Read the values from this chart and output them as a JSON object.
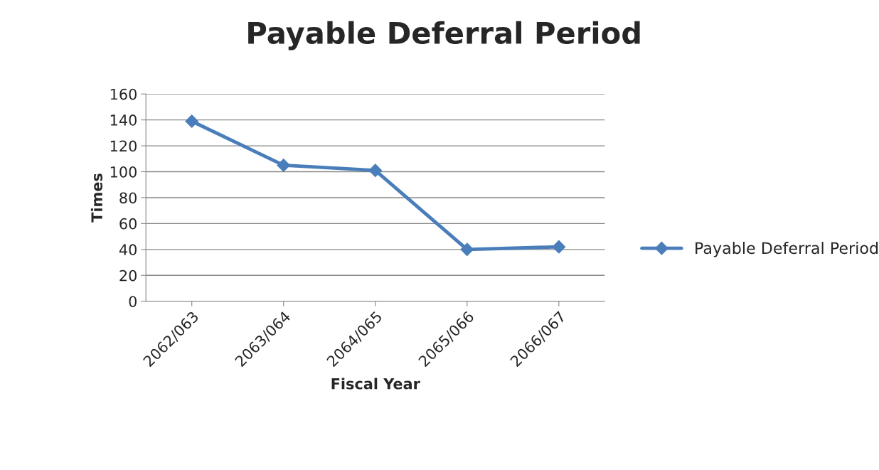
{
  "chart_data": {
    "type": "line",
    "title": "Payable Deferral Period",
    "xlabel": "Fiscal Year",
    "ylabel": "Times",
    "categories": [
      "2062/063",
      "2063/064",
      "2064/065",
      "2065/066",
      "2066/067"
    ],
    "series": [
      {
        "name": "Payable Deferral Period",
        "color": "#4a7ebb",
        "values": [
          139,
          105,
          101,
          40,
          42
        ]
      }
    ],
    "ylim": [
      0,
      160
    ],
    "yticks": [
      0,
      20,
      40,
      60,
      80,
      100,
      120,
      140,
      160
    ],
    "grid": "y",
    "legend": "right",
    "marker": "diamond",
    "line_style": "solid"
  }
}
